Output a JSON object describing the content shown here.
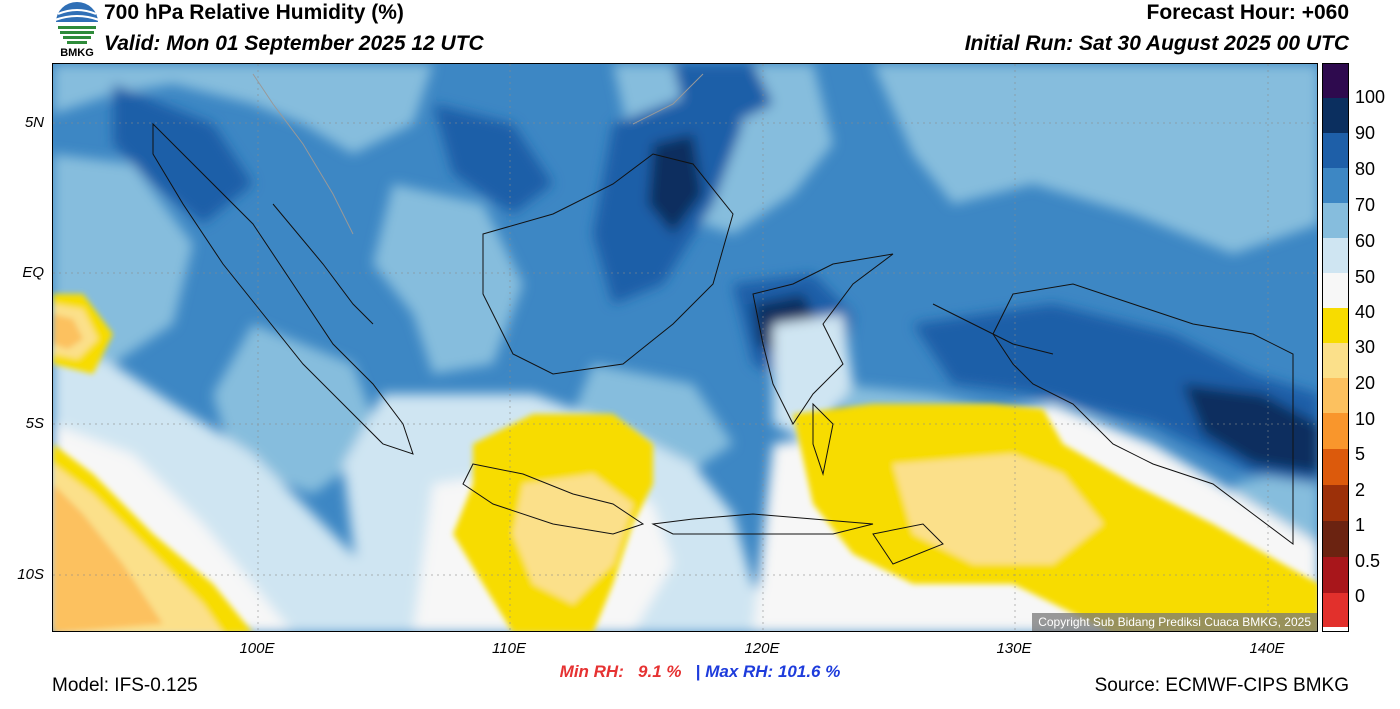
{
  "header": {
    "title": "700 hPa Relative Humidity (%)",
    "valid": "Valid: Mon 01 September 2025 12 UTC",
    "forecast_hour": "Forecast Hour: +060",
    "initial_run": "Initial Run: Sat 30 August 2025 00 UTC"
  },
  "logo": {
    "text": "BMKG",
    "icon": "bmkg-logo-icon"
  },
  "map": {
    "copyright": "Copyright Sub Bidang Prediksi Cuaca BMKG, 2025",
    "lat_labels": [
      "5N",
      "EQ",
      "5S",
      "10S"
    ],
    "lon_labels": [
      "100E",
      "110E",
      "120E",
      "130E",
      "140E"
    ]
  },
  "colorbar": {
    "labels": [
      "100",
      "90",
      "80",
      "70",
      "60",
      "50",
      "40",
      "30",
      "20",
      "10",
      "5",
      "2",
      "1",
      "0.5",
      "0"
    ],
    "colors": [
      "#2e0a4e",
      "#0b2f5f",
      "#1e5fa8",
      "#3d87c4",
      "#86bddd",
      "#cfe5f2",
      "#f7f7f7",
      "#f7dc00",
      "#fbe08a",
      "#fcc15f",
      "#f9962c",
      "#dc5a0c",
      "#9c3009",
      "#6b2311",
      "#a8161b",
      "#e2302c"
    ]
  },
  "stats": {
    "min_label": "Min RH:",
    "min_value": "9.1 %",
    "separator": "|",
    "max_label": "Max RH:",
    "max_value": "101.6 %"
  },
  "footer": {
    "model": "Model: IFS-0.125",
    "source": "Source: ECMWF-CIPS BMKG"
  }
}
